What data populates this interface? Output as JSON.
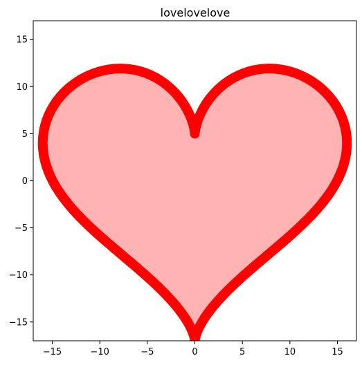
{
  "chart_data": {
    "type": "line",
    "title": "lovelovelove",
    "xlabel": "",
    "ylabel": "",
    "xlim": [
      -17,
      17
    ],
    "ylim": [
      -17,
      17
    ],
    "grid": false,
    "legend": "none",
    "x_ticks": [
      -15,
      -10,
      -5,
      0,
      5,
      10,
      15
    ],
    "y_ticks": [
      -15,
      -10,
      -5,
      0,
      5,
      10,
      15
    ],
    "series": [
      {
        "curve": "heart: x = 16 sin^3 t, y = 13 cos t - 5 cos 2t - 2 cos 3t - cos 4t",
        "line_color": "#ff0000",
        "fill_color": "#ffb3b3",
        "points_sampled": 200
      }
    ]
  }
}
